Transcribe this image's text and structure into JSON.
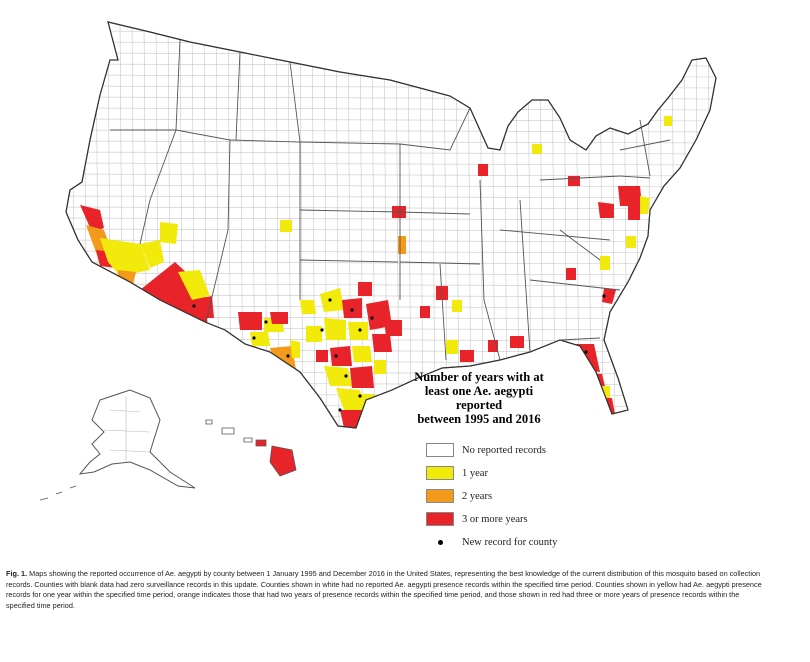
{
  "legend": {
    "title_lines": [
      "Number of years with at",
      "least one Ae. aegypti reported",
      "between 1995 and 2016"
    ],
    "items": [
      {
        "label": "No reported records",
        "color": "#ffffff"
      },
      {
        "label": "1 year",
        "color": "#f2ea0a"
      },
      {
        "label": "2 years",
        "color": "#f39a1c"
      },
      {
        "label": "3 or more years",
        "color": "#e8232a"
      }
    ],
    "new_record_label": "New record for county"
  },
  "caption": {
    "figure_label": "Fig. 1.",
    "text": "Maps showing the reported occurrence of Ae. aegypti by county between 1 January 1995 and December 2016 in the United States, representing the best knowledge of the current distribution of this mosquito based on collection records. Counties with blank data had zero surveillance records in this update. Counties shown in white had no reported Ae. aegypti presence records within the specified time period. Counties shown in yellow had Ae. aegypti presence records for one year within the specified time period, orange indicates those that had two years of presence records within the specified time period, and those shown in red had three or more years of presence records within the specified time period."
  }
}
